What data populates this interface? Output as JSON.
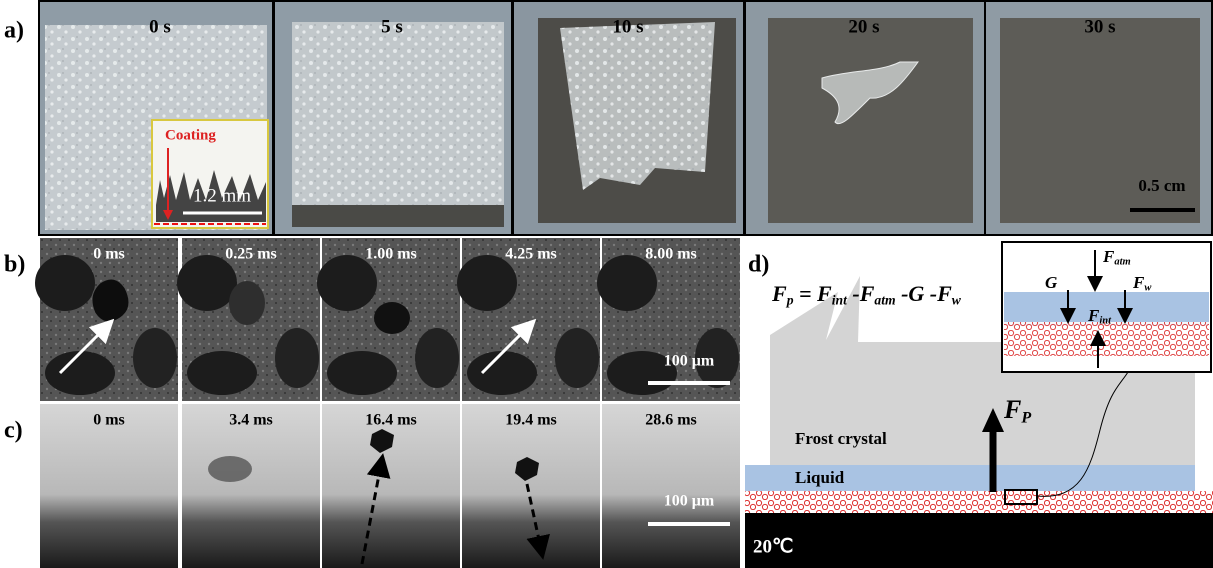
{
  "panels": {
    "a": {
      "label": "a)",
      "times": [
        "0 s",
        "5 s",
        "10 s",
        "20 s",
        "30 s"
      ],
      "inset_label": "Coating",
      "inset_scale": "1.2 mm",
      "scale": "0.5 cm"
    },
    "b": {
      "label": "b)",
      "times": [
        "0 ms",
        "0.25 ms",
        "1.00 ms",
        "4.25 ms",
        "8.00 ms"
      ],
      "scale": "100 μm"
    },
    "c": {
      "label": "c)",
      "times": [
        "0 ms",
        "3.4 ms",
        "16.4 ms",
        "19.4 ms",
        "28.6 ms"
      ],
      "scale": "100 μm"
    },
    "d": {
      "label": "d)",
      "equation": [
        "F",
        "p",
        " = F",
        "int",
        " -F",
        "atm",
        " -G -F",
        "w"
      ],
      "force": [
        "F",
        "P"
      ],
      "frost": "Frost crystal",
      "liquid": "Liquid",
      "temperature": "20℃",
      "inset": {
        "atm": [
          "F",
          "atm"
        ],
        "g": "G",
        "w": [
          "F",
          "w"
        ],
        "int": [
          "F",
          "int"
        ]
      }
    }
  }
}
